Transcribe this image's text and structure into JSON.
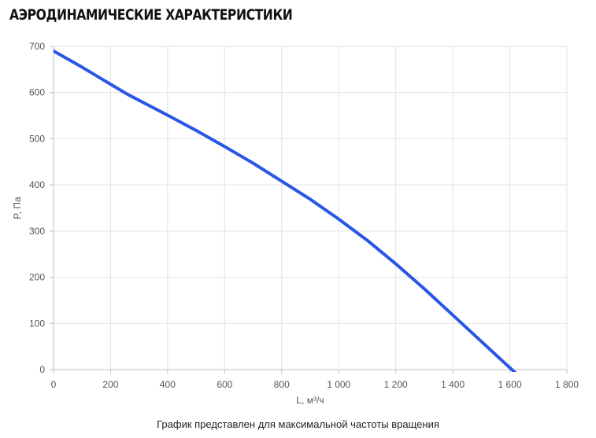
{
  "title": "АЭРОДИНАМИЧЕСКИЕ ХАРАКТЕРИСТИКИ",
  "caption": "График представлен для максимальной частоты вращения",
  "colors": {
    "line": "#2a56e6",
    "grid": "#e3e3e3",
    "axis": "#bdbdbd",
    "tick_text": "#555555"
  },
  "chart_data": {
    "type": "line",
    "xlabel": "L, м³/ч",
    "ylabel": "P, Па",
    "xlim": [
      0,
      1800
    ],
    "ylim": [
      0,
      700
    ],
    "x_ticks": [
      0,
      200,
      400,
      600,
      800,
      1000,
      1200,
      1400,
      1600,
      1800
    ],
    "x_tick_labels": [
      "0",
      "200",
      "400",
      "600",
      "800",
      "1 000",
      "1 200",
      "1 400",
      "1 600",
      "1 800"
    ],
    "y_ticks": [
      0,
      100,
      200,
      300,
      400,
      500,
      600,
      700
    ],
    "y_tick_labels": [
      "0",
      "100",
      "200",
      "300",
      "400",
      "500",
      "600",
      "700"
    ],
    "grid": true,
    "series": [
      {
        "x": [
          0,
          100,
          200,
          260,
          400,
          500,
          600,
          700,
          800,
          900,
          1000,
          1100,
          1200,
          1300,
          1400,
          1500,
          1600,
          1700
        ],
        "y": [
          690,
          655,
          618,
          596,
          551,
          518,
          483,
          447,
          408,
          369,
          326,
          280,
          229,
          175,
          118,
          61,
          4,
          -52
        ]
      }
    ]
  }
}
